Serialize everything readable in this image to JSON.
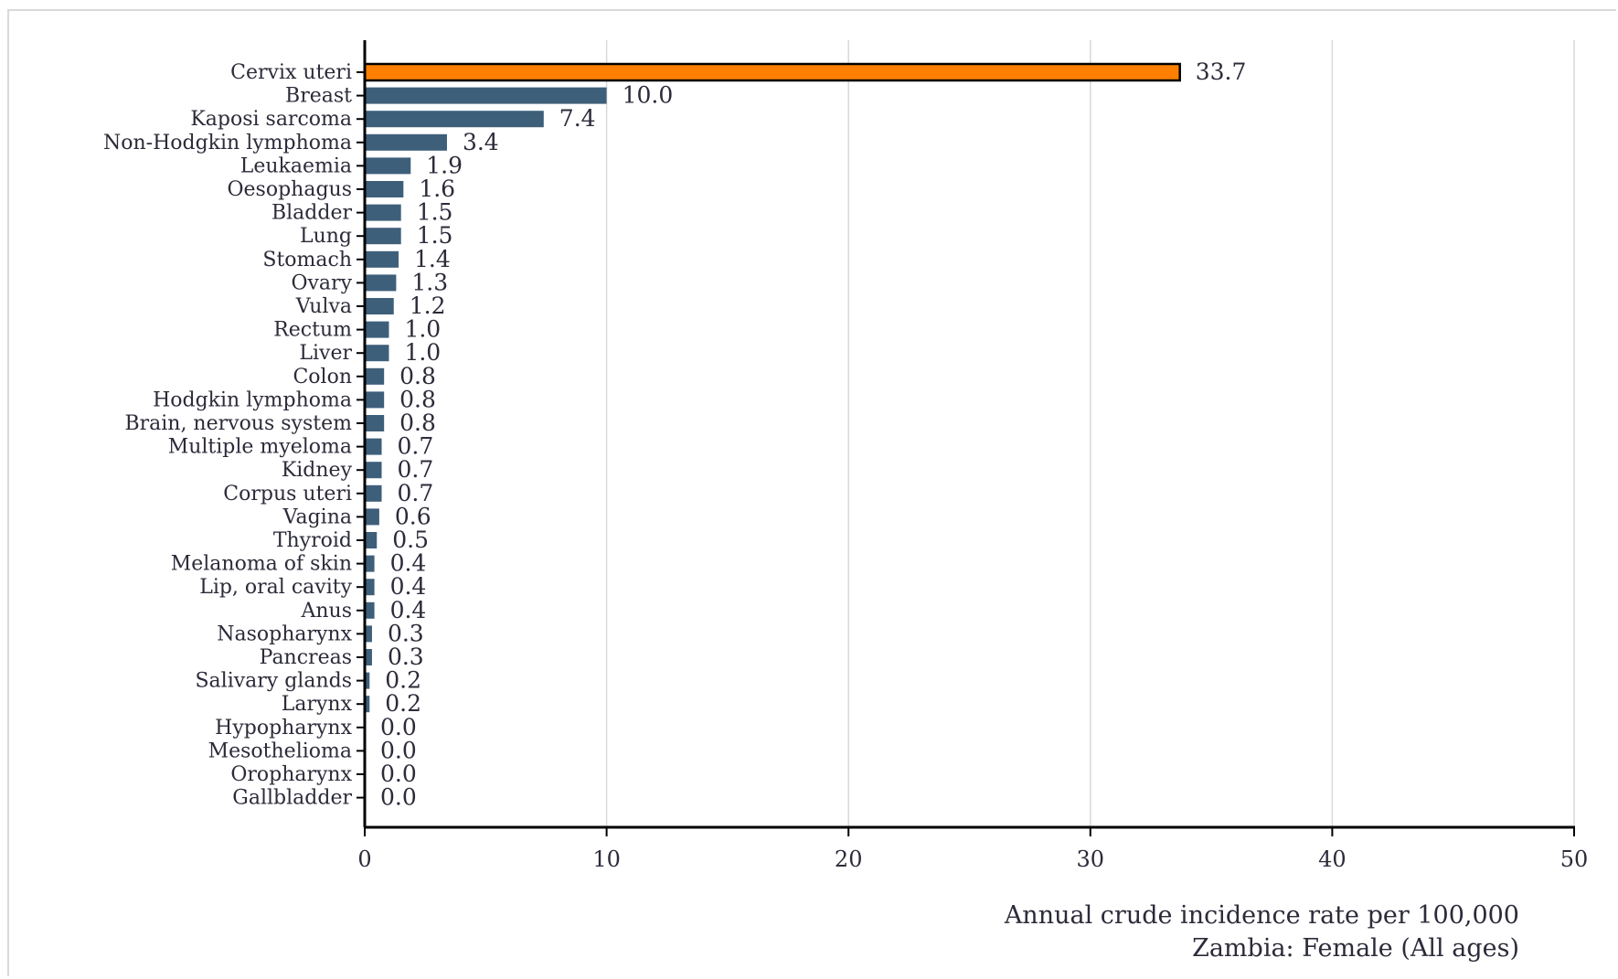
{
  "chart_data": {
    "type": "bar",
    "orientation": "horizontal",
    "categories": [
      "Cervix uteri",
      "Breast",
      "Kaposi sarcoma",
      "Non-Hodgkin lymphoma",
      "Leukaemia",
      "Oesophagus",
      "Bladder",
      "Lung",
      "Stomach",
      "Ovary",
      "Vulva",
      "Rectum",
      "Liver",
      "Colon",
      "Hodgkin lymphoma",
      "Brain, nervous system",
      "Multiple myeloma",
      "Kidney",
      "Corpus uteri",
      "Vagina",
      "Thyroid",
      "Melanoma of skin",
      "Lip, oral cavity",
      "Anus",
      "Nasopharynx",
      "Pancreas",
      "Salivary glands",
      "Larynx",
      "Hypopharynx",
      "Mesothelioma",
      "Oropharynx",
      "Gallbladder"
    ],
    "values": [
      33.7,
      10.0,
      7.4,
      3.4,
      1.9,
      1.6,
      1.5,
      1.5,
      1.4,
      1.3,
      1.2,
      1.0,
      1.0,
      0.8,
      0.8,
      0.8,
      0.7,
      0.7,
      0.7,
      0.6,
      0.5,
      0.4,
      0.4,
      0.4,
      0.3,
      0.3,
      0.2,
      0.2,
      0.0,
      0.0,
      0.0,
      0.0
    ],
    "value_labels": [
      "33.7",
      "10.0",
      "7.4",
      "3.4",
      "1.9",
      "1.6",
      "1.5",
      "1.5",
      "1.4",
      "1.3",
      "1.2",
      "1.0",
      "1.0",
      "0.8",
      "0.8",
      "0.8",
      "0.7",
      "0.7",
      "0.7",
      "0.6",
      "0.5",
      "0.4",
      "0.4",
      "0.4",
      "0.3",
      "0.3",
      "0.2",
      "0.2",
      "0.0",
      "0.0",
      "0.0",
      "0.0"
    ],
    "highlight_index": 0,
    "xlim": [
      0,
      50
    ],
    "xticks": [
      0,
      10,
      20,
      30,
      40,
      50
    ],
    "xlabel": "Annual crude incidence rate per 100,000",
    "xlabel2": "Zambia: Female  (All ages)",
    "grid": true,
    "colors": {
      "bar": "#3e5f7a",
      "highlight": "#ff8000",
      "highlight_border": "#000000",
      "grid": "#d9d9d9",
      "axis": "#000000"
    }
  }
}
